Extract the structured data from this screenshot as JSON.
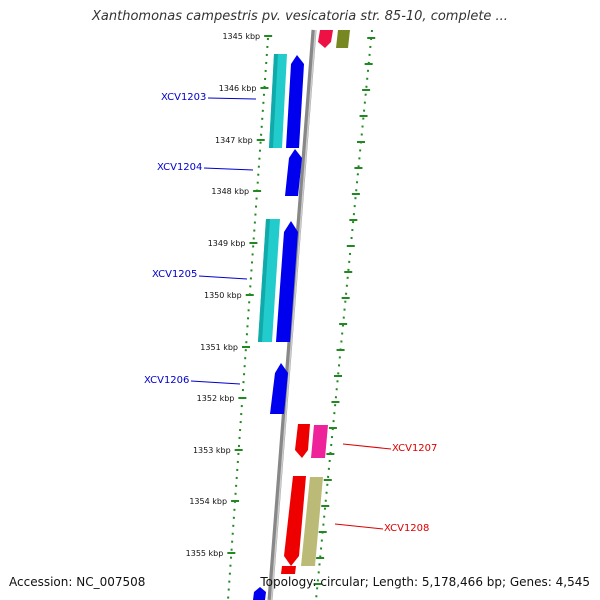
{
  "title": "Xanthomonas campestris pv. vesicatoria str. 85-10, complete ...",
  "footer": {
    "accession": "Accession: NC_007508",
    "summary": "Topology: circular; Length: 5,178,466 bp; Genes: 4,545"
  },
  "ticks": [
    "1345 kbp",
    "1346 kbp",
    "1347 kbp",
    "1348 kbp",
    "1349 kbp",
    "1350 kbp",
    "1351 kbp",
    "1352 kbp",
    "1353 kbp",
    "1354 kbp",
    "1355 kbp"
  ],
  "genes": [
    {
      "label": "XCV1203",
      "strand": "forward",
      "color": "#0000cc"
    },
    {
      "label": "XCV1204",
      "strand": "forward",
      "color": "#0000cc"
    },
    {
      "label": "XCV1205",
      "strand": "forward",
      "color": "#0000cc"
    },
    {
      "label": "XCV1206",
      "strand": "forward",
      "color": "#0000cc"
    },
    {
      "label": "XCV1207",
      "strand": "reverse",
      "color": "#dd0000"
    },
    {
      "label": "XCV1208",
      "strand": "reverse",
      "color": "#dd0000"
    }
  ],
  "colors": {
    "cds_forward": "#0000ee",
    "cds_reverse": "#ee0000",
    "feature_cyan": "#22cccc",
    "feature_pink": "#ee2299",
    "feature_olive": "#bbbb77",
    "feature_olive_dark": "#778822",
    "backbone": "#888888",
    "guide_dots": "#228822"
  }
}
